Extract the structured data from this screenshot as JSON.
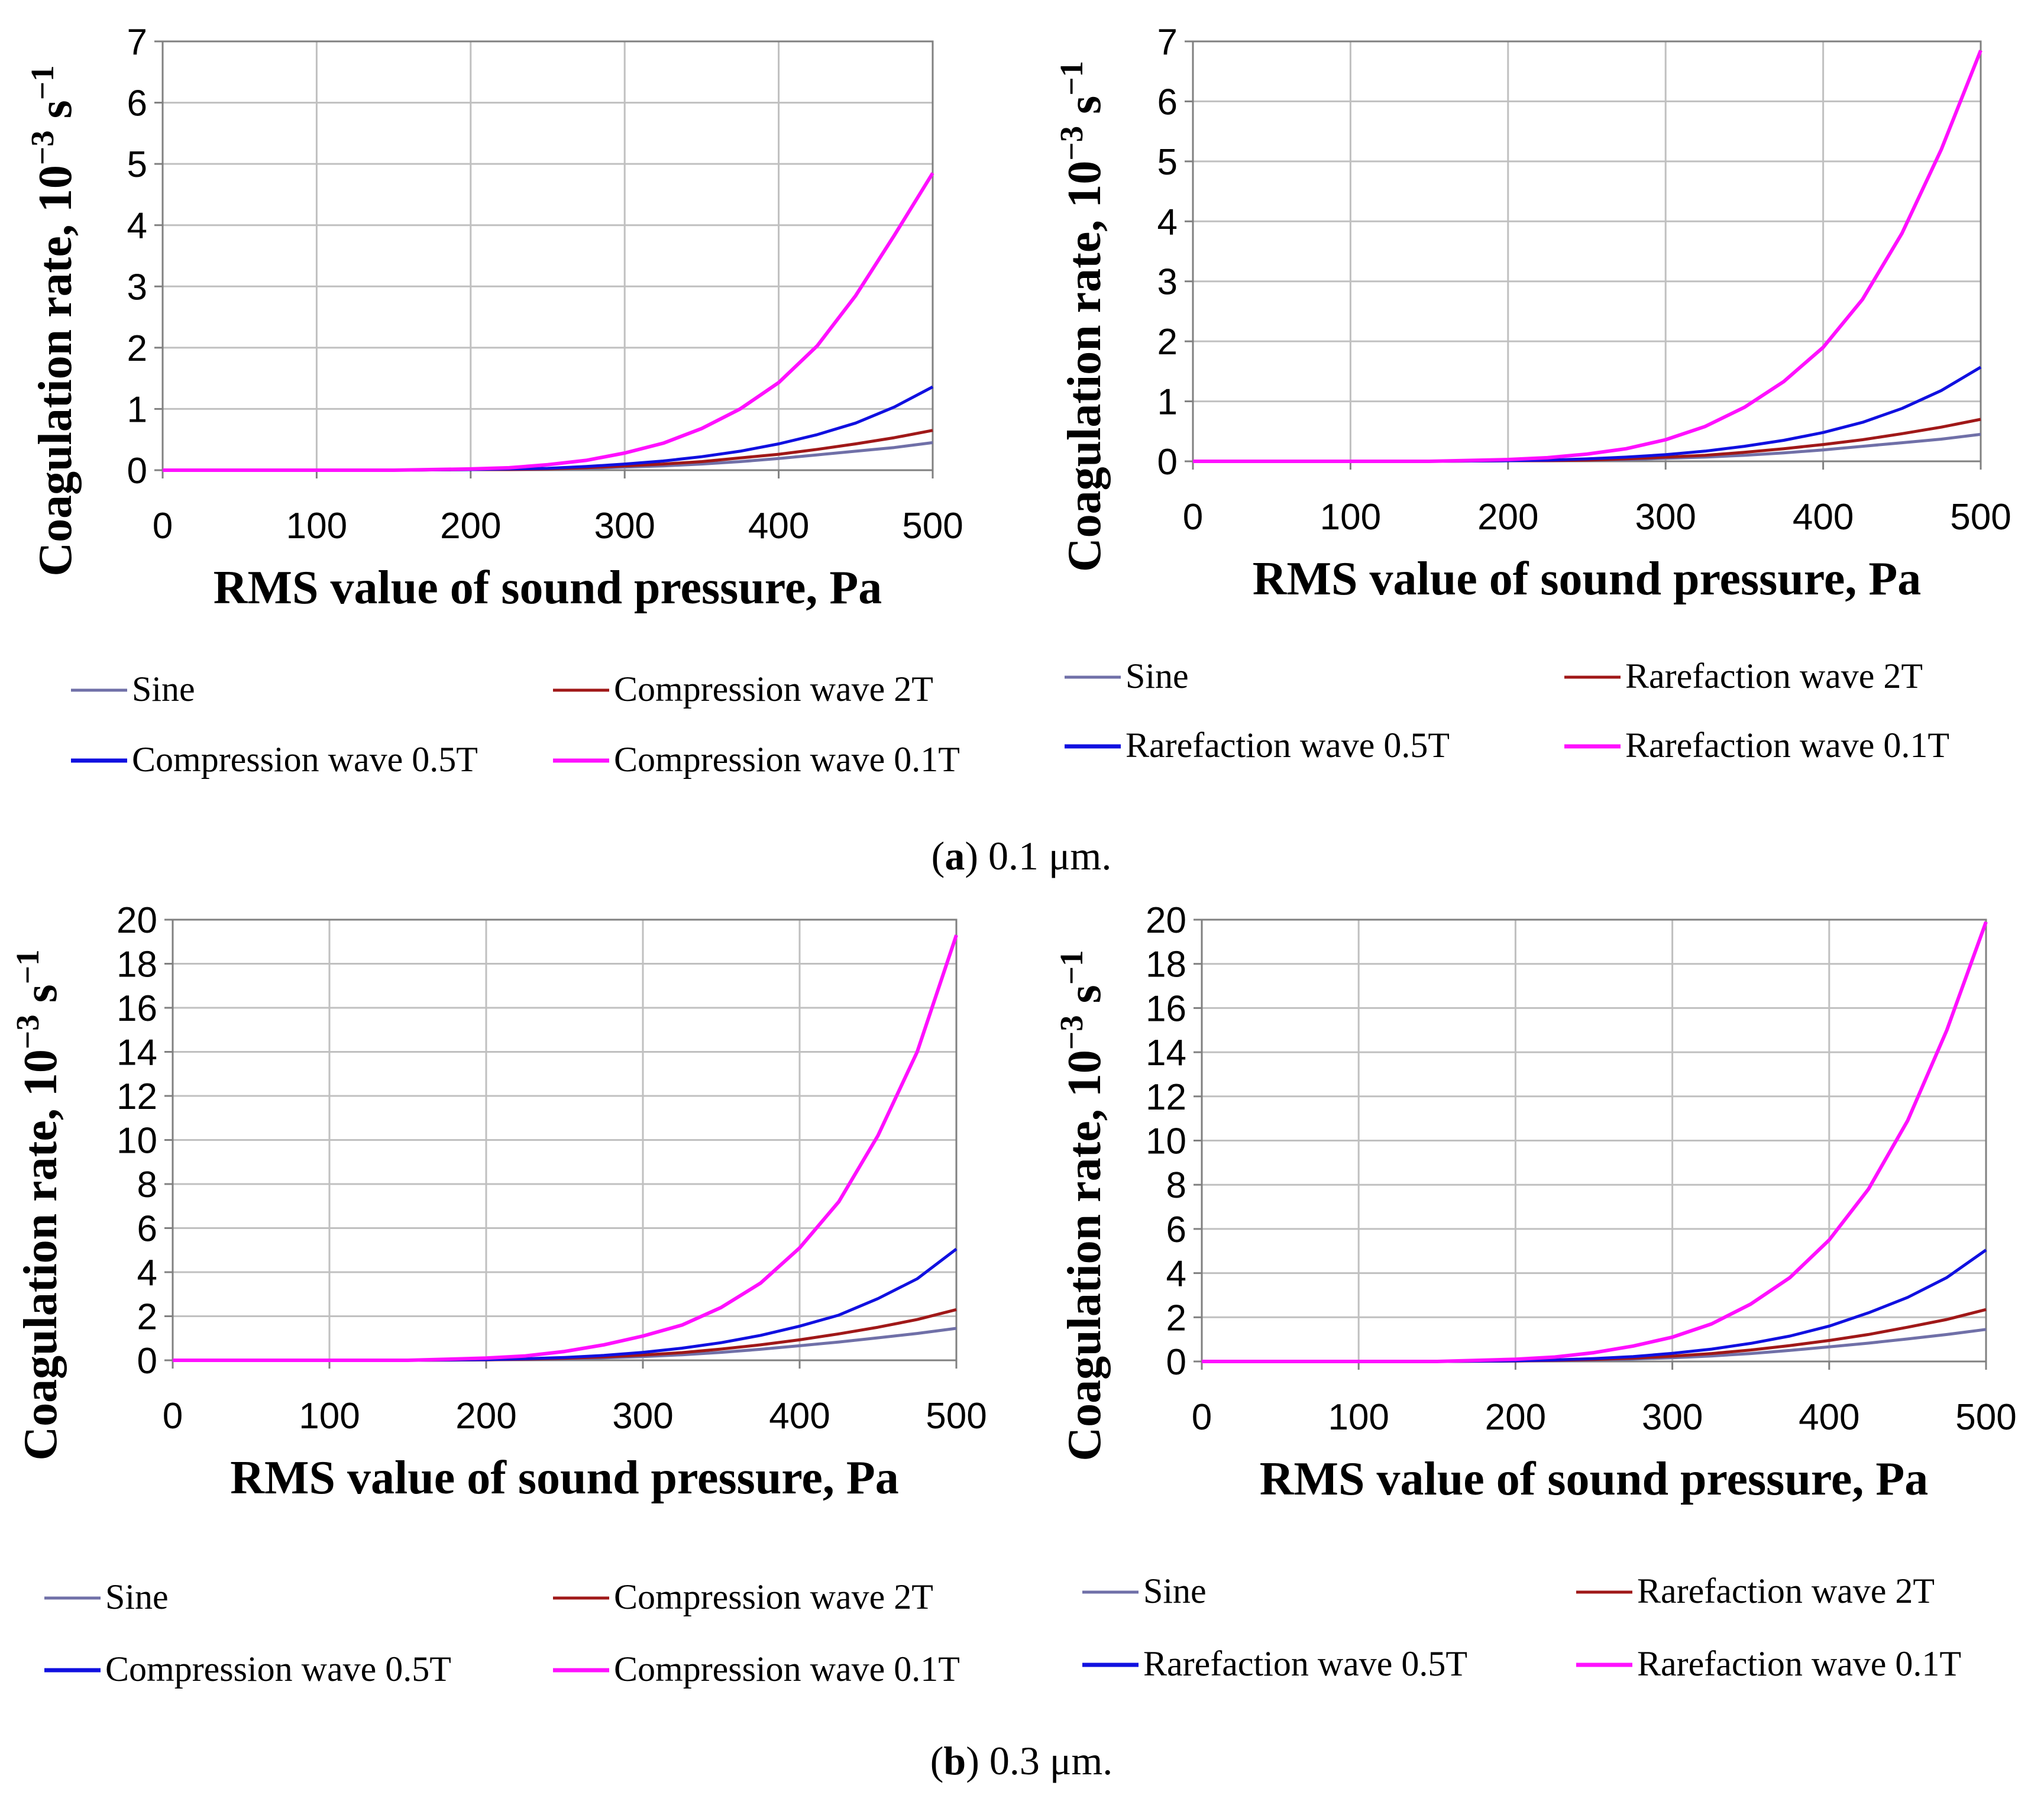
{
  "captions": [
    {
      "label": "a",
      "text": " 0.1 μm."
    },
    {
      "label": "b",
      "text": " 0.3 μm."
    }
  ],
  "chart_data": [
    {
      "type": "line",
      "title": "",
      "xlabel": "RMS value of sound pressure, Pa",
      "ylabel_main": "Coagulation rate, 10",
      "ylabel_exp1": "−3",
      "ylabel_unit": " s",
      "ylabel_exp2": "−1",
      "xlim": [
        0,
        500
      ],
      "ylim": [
        0,
        7
      ],
      "xticks": [
        0,
        100,
        200,
        300,
        400,
        500
      ],
      "yticks": [
        0,
        1,
        2,
        3,
        4,
        5,
        6,
        7
      ],
      "grid": true,
      "x": [
        0,
        50,
        100,
        150,
        200,
        225,
        250,
        275,
        300,
        325,
        350,
        375,
        400,
        425,
        450,
        475,
        500
      ],
      "series": [
        {
          "name": "Sine",
          "color": "#7070a8",
          "values": [
            0,
            0,
            0,
            0,
            0.01,
            0.01,
            0.02,
            0.03,
            0.05,
            0.07,
            0.1,
            0.14,
            0.19,
            0.25,
            0.31,
            0.37,
            0.45
          ]
        },
        {
          "name": "Compression wave 2T",
          "color": "#a01818",
          "values": [
            0,
            0,
            0,
            0,
            0.01,
            0.01,
            0.02,
            0.04,
            0.07,
            0.1,
            0.14,
            0.2,
            0.26,
            0.34,
            0.43,
            0.53,
            0.65
          ]
        },
        {
          "name": "Compression wave 0.5T",
          "color": "#1010e0",
          "values": [
            0,
            0,
            0,
            0,
            0.01,
            0.02,
            0.03,
            0.06,
            0.1,
            0.15,
            0.22,
            0.31,
            0.43,
            0.58,
            0.77,
            1.03,
            1.36
          ]
        },
        {
          "name": "Compression wave 0.1T",
          "color": "#ff10ff",
          "values": [
            0,
            0,
            0,
            0,
            0.02,
            0.04,
            0.09,
            0.16,
            0.28,
            0.44,
            0.68,
            1.0,
            1.43,
            2.03,
            2.85,
            3.83,
            4.85
          ]
        }
      ],
      "legend": [
        "Sine",
        "Compression wave 2T",
        "Compression wave 0.5T",
        "Compression wave 0.1T"
      ]
    },
    {
      "type": "line",
      "title": "",
      "xlabel": "RMS value of sound pressure, Pa",
      "ylabel_main": "Coagulation rate, 10",
      "ylabel_exp1": "−3",
      "ylabel_unit": " s",
      "ylabel_exp2": "−1",
      "xlim": [
        0,
        500
      ],
      "ylim": [
        0,
        7
      ],
      "xticks": [
        0,
        100,
        200,
        300,
        400,
        500
      ],
      "yticks": [
        0,
        1,
        2,
        3,
        4,
        5,
        6,
        7
      ],
      "grid": true,
      "x": [
        0,
        50,
        100,
        150,
        200,
        225,
        250,
        275,
        300,
        325,
        350,
        375,
        400,
        425,
        450,
        475,
        500
      ],
      "series": [
        {
          "name": "Sine",
          "color": "#7070a8",
          "values": [
            0,
            0,
            0,
            0,
            0.01,
            0.01,
            0.02,
            0.03,
            0.05,
            0.07,
            0.1,
            0.14,
            0.19,
            0.25,
            0.31,
            0.37,
            0.45
          ]
        },
        {
          "name": "Rarefaction wave 2T",
          "color": "#a01818",
          "values": [
            0,
            0,
            0,
            0,
            0.01,
            0.01,
            0.02,
            0.04,
            0.07,
            0.1,
            0.15,
            0.21,
            0.28,
            0.36,
            0.46,
            0.57,
            0.7
          ]
        },
        {
          "name": "Rarefaction wave 0.5T",
          "color": "#1010e0",
          "values": [
            0,
            0,
            0,
            0,
            0.01,
            0.02,
            0.04,
            0.07,
            0.11,
            0.17,
            0.25,
            0.35,
            0.48,
            0.65,
            0.88,
            1.18,
            1.57
          ]
        },
        {
          "name": "Rarefaction wave 0.1T",
          "color": "#ff10ff",
          "values": [
            0,
            0,
            0,
            0,
            0.03,
            0.06,
            0.12,
            0.21,
            0.36,
            0.58,
            0.9,
            1.33,
            1.9,
            2.7,
            3.8,
            5.2,
            6.85
          ]
        }
      ],
      "legend": [
        "Sine",
        "Rarefaction wave 2T",
        "Rarefaction wave 0.5T",
        "Rarefaction wave 0.1T"
      ]
    },
    {
      "type": "line",
      "title": "",
      "xlabel": "RMS value of sound pressure, Pa",
      "ylabel_main": "Coagulation rate, 10",
      "ylabel_exp1": "−3",
      "ylabel_unit": " s",
      "ylabel_exp2": "−1",
      "xlim": [
        0,
        500
      ],
      "ylim": [
        0,
        20
      ],
      "xticks": [
        0,
        100,
        200,
        300,
        400,
        500
      ],
      "yticks": [
        0,
        2,
        4,
        6,
        8,
        10,
        12,
        14,
        16,
        18,
        20
      ],
      "grid": true,
      "x": [
        0,
        50,
        100,
        150,
        200,
        225,
        250,
        275,
        300,
        325,
        350,
        375,
        400,
        425,
        450,
        475,
        500
      ],
      "series": [
        {
          "name": "Sine",
          "color": "#7070a8",
          "values": [
            0,
            0,
            0,
            0,
            0.02,
            0.04,
            0.07,
            0.11,
            0.17,
            0.25,
            0.36,
            0.5,
            0.66,
            0.83,
            1.02,
            1.22,
            1.45
          ]
        },
        {
          "name": "Compression wave 2T",
          "color": "#a01818",
          "values": [
            0,
            0,
            0,
            0,
            0.02,
            0.05,
            0.09,
            0.15,
            0.24,
            0.35,
            0.51,
            0.7,
            0.93,
            1.2,
            1.5,
            1.85,
            2.3
          ]
        },
        {
          "name": "Compression wave 0.5T",
          "color": "#1010e0",
          "values": [
            0,
            0,
            0,
            0,
            0.03,
            0.07,
            0.13,
            0.22,
            0.36,
            0.55,
            0.8,
            1.13,
            1.55,
            2.05,
            2.8,
            3.7,
            5.05
          ]
        },
        {
          "name": "Compression wave 0.1T",
          "color": "#ff10ff",
          "values": [
            0,
            0,
            0,
            0,
            0.1,
            0.2,
            0.4,
            0.7,
            1.1,
            1.6,
            2.4,
            3.5,
            5.1,
            7.2,
            10.2,
            14.0,
            19.3
          ]
        }
      ],
      "legend": [
        "Sine",
        "Compression wave 2T",
        "Compression wave 0.5T",
        "Compression wave 0.1T"
      ]
    },
    {
      "type": "line",
      "title": "",
      "xlabel": "RMS value of sound pressure, Pa",
      "ylabel_main": "Coagulation rate, 10",
      "ylabel_exp1": "−3",
      "ylabel_unit": " s",
      "ylabel_exp2": "−1",
      "xlim": [
        0,
        500
      ],
      "ylim": [
        0,
        20
      ],
      "xticks": [
        0,
        100,
        200,
        300,
        400,
        500
      ],
      "yticks": [
        0,
        2,
        4,
        6,
        8,
        10,
        12,
        14,
        16,
        18,
        20
      ],
      "grid": true,
      "x": [
        0,
        50,
        100,
        150,
        200,
        225,
        250,
        275,
        300,
        325,
        350,
        375,
        400,
        425,
        450,
        475,
        500
      ],
      "series": [
        {
          "name": "Sine",
          "color": "#7070a8",
          "values": [
            0,
            0,
            0,
            0,
            0.02,
            0.04,
            0.07,
            0.11,
            0.17,
            0.25,
            0.36,
            0.5,
            0.66,
            0.83,
            1.02,
            1.22,
            1.45
          ]
        },
        {
          "name": "Rarefaction wave 2T",
          "color": "#a01818",
          "values": [
            0,
            0,
            0,
            0,
            0.02,
            0.05,
            0.09,
            0.15,
            0.24,
            0.36,
            0.52,
            0.72,
            0.95,
            1.22,
            1.55,
            1.9,
            2.35
          ]
        },
        {
          "name": "Rarefaction wave 0.5T",
          "color": "#1010e0",
          "values": [
            0,
            0,
            0,
            0,
            0.03,
            0.07,
            0.13,
            0.22,
            0.37,
            0.56,
            0.82,
            1.15,
            1.6,
            2.2,
            2.9,
            3.8,
            5.05
          ]
        },
        {
          "name": "Rarefaction wave 0.1T",
          "color": "#ff10ff",
          "values": [
            0,
            0,
            0,
            0,
            0.1,
            0.2,
            0.4,
            0.7,
            1.1,
            1.7,
            2.6,
            3.8,
            5.5,
            7.8,
            10.9,
            15.0,
            19.9
          ]
        }
      ],
      "legend": [
        "Sine",
        "Rarefaction wave 2T",
        "Rarefaction wave 0.5T",
        "Rarefaction wave 0.1T"
      ]
    }
  ]
}
